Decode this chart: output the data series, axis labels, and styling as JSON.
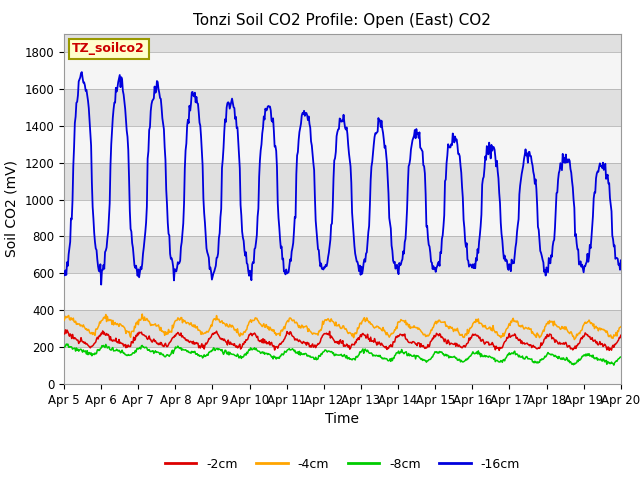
{
  "title": "Tonzi Soil CO2 Profile: Open (East) CO2",
  "ylabel": "Soil CO2 (mV)",
  "xlabel": "Time",
  "label_box": "TZ_soilco2",
  "ylim": [
    0,
    1900
  ],
  "yticks": [
    0,
    200,
    400,
    600,
    800,
    1000,
    1200,
    1400,
    1600,
    1800
  ],
  "x_tick_labels": [
    "Apr 5",
    "Apr 6",
    "Apr 7",
    "Apr 8",
    "Apr 9",
    "Apr 10",
    "Apr 11",
    "Apr 12",
    "Apr 13",
    "Apr 14",
    "Apr 15",
    "Apr 16",
    "Apr 17",
    "Apr 18",
    "Apr 19",
    "Apr 20"
  ],
  "legend_labels": [
    "-2cm",
    "-4cm",
    "-8cm",
    "-16cm"
  ],
  "legend_colors": [
    "#dd0000",
    "#ffa500",
    "#00cc00",
    "#0000dd"
  ],
  "line_colors": {
    "depth_2cm": "#dd0000",
    "depth_4cm": "#ffa500",
    "depth_8cm": "#00cc00",
    "depth_16cm": "#0000dd"
  },
  "background_color": "#ffffff",
  "stripe_colors": [
    "#f5f5f5",
    "#e0e0e0"
  ],
  "title_fontsize": 11,
  "axis_label_fontsize": 10,
  "tick_fontsize": 8.5,
  "legend_fontsize": 9
}
